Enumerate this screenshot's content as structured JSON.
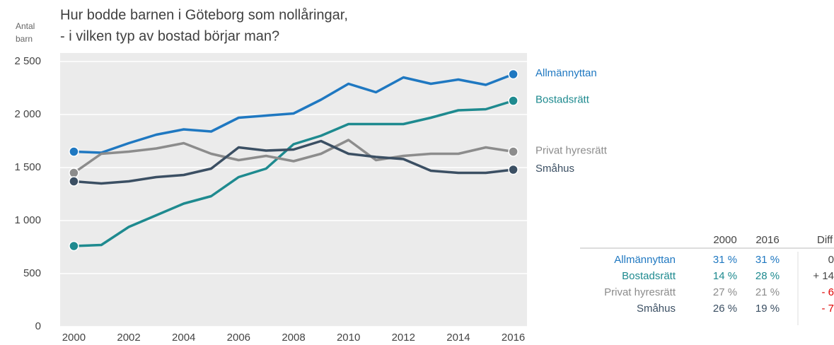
{
  "chart_data": {
    "type": "line",
    "title": [
      "Hur bodde barnen i Göteborg som nollåringar,",
      "- i vilken typ av bostad börjar man?"
    ],
    "y_label": [
      "Antal",
      "barn"
    ],
    "x": [
      2000,
      2001,
      2002,
      2003,
      2004,
      2005,
      2006,
      2007,
      2008,
      2009,
      2010,
      2011,
      2012,
      2013,
      2014,
      2015,
      2016
    ],
    "xlim": [
      1999.5,
      2016.5
    ],
    "xticks": [
      2000,
      2002,
      2004,
      2006,
      2008,
      2010,
      2012,
      2014,
      2016
    ],
    "ylim": [
      0,
      2580
    ],
    "yticks": [
      0,
      500,
      {
        "value": 1000,
        "label": "1 000"
      },
      {
        "value": 1500,
        "label": "1 500"
      },
      {
        "value": 2000,
        "label": "2 000"
      },
      {
        "value": 2500,
        "label": "2 500"
      }
    ],
    "grid": true,
    "series": [
      {
        "name": "Allmännyttan",
        "color": "#1f78c1",
        "values": [
          1650,
          1640,
          1730,
          1810,
          1860,
          1840,
          1970,
          1990,
          2010,
          2140,
          2290,
          2210,
          2350,
          2290,
          2330,
          2280,
          2380
        ]
      },
      {
        "name": "Bostadsrätt",
        "color": "#1e8a8f",
        "values": [
          760,
          770,
          940,
          1050,
          1160,
          1230,
          1410,
          1490,
          1720,
          1800,
          1910,
          1910,
          1910,
          1970,
          2040,
          2050,
          2130
        ]
      },
      {
        "name": "Privat hyresrätt",
        "color": "#8c8c8c",
        "values": [
          1450,
          1630,
          1650,
          1680,
          1730,
          1630,
          1570,
          1610,
          1560,
          1630,
          1760,
          1570,
          1610,
          1630,
          1630,
          1690,
          1650
        ]
      },
      {
        "name": "Småhus",
        "color": "#3b4f63",
        "values": [
          1370,
          1350,
          1370,
          1410,
          1430,
          1490,
          1690,
          1660,
          1670,
          1750,
          1630,
          1600,
          1580,
          1470,
          1450,
          1450,
          1480
        ]
      }
    ]
  },
  "table": {
    "columns": [
      "2000",
      "2016",
      "Diff"
    ],
    "rows": [
      [
        "Allmännyttan",
        "31 %",
        "31 %",
        "0"
      ],
      [
        "Bostadsrätt",
        "14 %",
        "28 %",
        "+ 14"
      ],
      [
        "Privat hyresrätt",
        "27 %",
        "21 %",
        "- 6"
      ],
      [
        "Småhus",
        "26 %",
        "19 %",
        "- 7"
      ]
    ]
  }
}
